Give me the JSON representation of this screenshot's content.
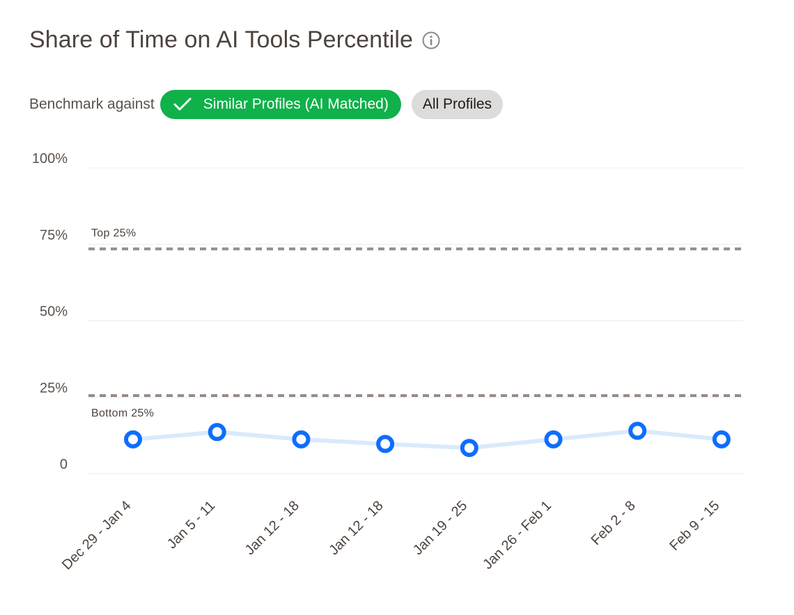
{
  "header": {
    "title": "Share of Time on AI Tools Percentile",
    "info_icon": "info-circle-icon"
  },
  "benchmark": {
    "label": "Benchmark against",
    "options": [
      {
        "label": "Similar Profiles (AI Matched)",
        "selected": true,
        "icon": "check-icon"
      },
      {
        "label": "All Profiles",
        "selected": false
      }
    ]
  },
  "colors": {
    "accent_green": "#10b04a",
    "series_blue": "#0d6efd",
    "series_line": "#dbe9fd",
    "reference_line": "#958c88",
    "gridline": "#ececec"
  },
  "chart_data": {
    "type": "line",
    "categories": [
      "Dec 29 - Jan 4",
      "Jan 5 - 11",
      "Jan 12 - 18",
      "Jan 12 - 18",
      "Jan 19 - 25",
      "Jan 26 - Feb 1",
      "Feb 2 - 8",
      "Feb 9 - 15"
    ],
    "series": [
      {
        "values": [
          11.2,
          13.6,
          11.2,
          9.7,
          8.4,
          11.2,
          14.0,
          11.2
        ]
      }
    ],
    "ylim": [
      0,
      100
    ],
    "y_ticks": [
      {
        "value": 0,
        "label": "0"
      },
      {
        "value": 25,
        "label": "25%"
      },
      {
        "value": 50,
        "label": "50%"
      },
      {
        "value": 75,
        "label": "75%"
      },
      {
        "value": 100,
        "label": "100%"
      }
    ],
    "reference_lines": [
      {
        "value": 73.5,
        "label": "Top 25%",
        "label_position": "above"
      },
      {
        "value": 25.5,
        "label": "Bottom 25%",
        "label_position": "below"
      }
    ],
    "grid": true,
    "xlabel": "",
    "ylabel": "",
    "title": "Share of Time on AI Tools Percentile"
  }
}
